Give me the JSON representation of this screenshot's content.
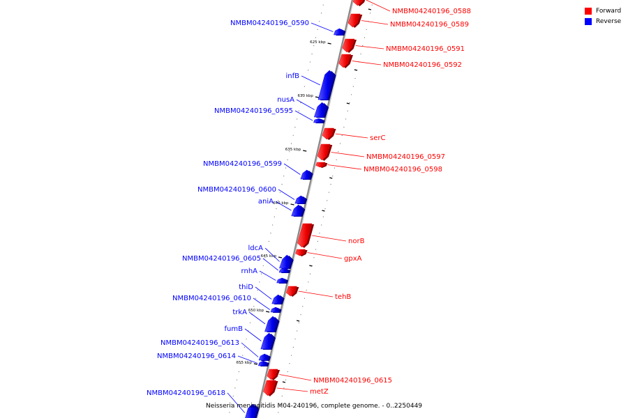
{
  "colors": {
    "forward": "#ff0000",
    "reverse": "#0000ff",
    "backbone": "#888888"
  },
  "legend": [
    {
      "label": "Forward",
      "color": "#ff0000"
    },
    {
      "label": "Reverse",
      "color": "#0000ff"
    }
  ],
  "caption": "Neisseria meningitidis M04-240196, complete genome. - 0..2250449",
  "scale_labels": [
    "625 kbp",
    "630 kbp",
    "635 kbp",
    "640 kbp",
    "645 kbp",
    "650 kbp",
    "655 kbp"
  ],
  "genes": [
    {
      "name": "NMBM04240196_0588",
      "strand": "forward"
    },
    {
      "name": "NMBM04240196_0589",
      "strand": "forward"
    },
    {
      "name": "NMBM04240196_0590",
      "strand": "reverse"
    },
    {
      "name": "NMBM04240196_0591",
      "strand": "forward"
    },
    {
      "name": "NMBM04240196_0592",
      "strand": "forward"
    },
    {
      "name": "infB",
      "strand": "reverse"
    },
    {
      "name": "nusA",
      "strand": "reverse"
    },
    {
      "name": "NMBM04240196_0595",
      "strand": "reverse"
    },
    {
      "name": "serC",
      "strand": "forward"
    },
    {
      "name": "NMBM04240196_0597",
      "strand": "forward"
    },
    {
      "name": "NMBM04240196_0598",
      "strand": "forward"
    },
    {
      "name": "NMBM04240196_0599",
      "strand": "reverse"
    },
    {
      "name": "NMBM04240196_0600",
      "strand": "reverse"
    },
    {
      "name": "aniA",
      "strand": "reverse"
    },
    {
      "name": "norB",
      "strand": "forward"
    },
    {
      "name": "gpxA",
      "strand": "forward"
    },
    {
      "name": "ldcA",
      "strand": "reverse"
    },
    {
      "name": "NMBM04240196_0605",
      "strand": "reverse"
    },
    {
      "name": "rnhA",
      "strand": "reverse"
    },
    {
      "name": "tehB",
      "strand": "forward"
    },
    {
      "name": "thiD",
      "strand": "reverse"
    },
    {
      "name": "NMBM04240196_0610",
      "strand": "reverse"
    },
    {
      "name": "trkA",
      "strand": "reverse"
    },
    {
      "name": "fumB",
      "strand": "reverse"
    },
    {
      "name": "NMBM04240196_0613",
      "strand": "reverse"
    },
    {
      "name": "NMBM04240196_0614",
      "strand": "reverse"
    },
    {
      "name": "NMBM04240196_0615",
      "strand": "forward"
    },
    {
      "name": "metZ",
      "strand": "forward"
    },
    {
      "name": "NMBM04240196_0618",
      "strand": "reverse"
    }
  ]
}
